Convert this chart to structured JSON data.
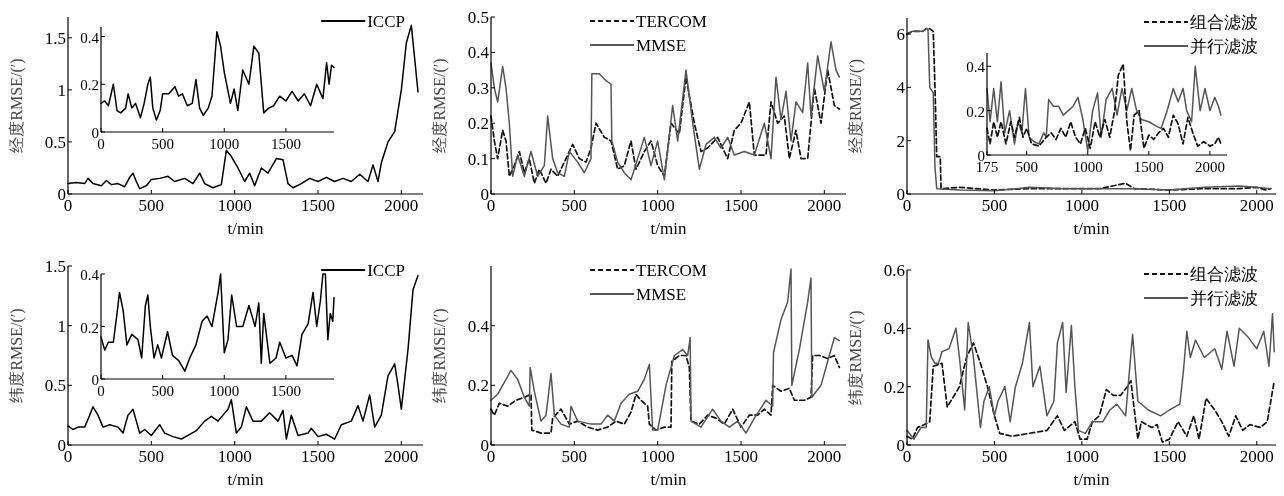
{
  "chart_data": [
    {
      "type": "line",
      "xlabel": "t/min",
      "ylabel": "经度RMSE/(′)",
      "xlim": [
        0,
        2130
      ],
      "ylim": [
        0,
        1.7
      ],
      "xticks": [
        0,
        500,
        1000,
        1500,
        2000
      ],
      "yticks": [
        0,
        0.5,
        1,
        1.5
      ],
      "legend": "top right",
      "series": [
        {
          "name": "ICCP",
          "color": "#000000",
          "line_style": "solid",
          "x": [
            0,
            50,
            100,
            120,
            150,
            200,
            230,
            260,
            300,
            340,
            370,
            390,
            410,
            430,
            470,
            500,
            550,
            600,
            640,
            700,
            750,
            790,
            820,
            870,
            920,
            950,
            980,
            1020,
            1060,
            1090,
            1120,
            1160,
            1200,
            1250,
            1290,
            1320,
            1350,
            1400,
            1450,
            1500,
            1550,
            1600,
            1650,
            1700,
            1750,
            1800,
            1830,
            1860,
            1880,
            1920,
            1960,
            2000,
            2030,
            2060,
            2080,
            2100
          ],
          "values": [
            0.1,
            0.11,
            0.1,
            0.15,
            0.1,
            0.08,
            0.13,
            0.09,
            0.1,
            0.07,
            0.16,
            0.2,
            0.12,
            0.05,
            0.08,
            0.14,
            0.15,
            0.17,
            0.12,
            0.15,
            0.1,
            0.2,
            0.1,
            0.06,
            0.09,
            0.42,
            0.36,
            0.25,
            0.12,
            0.2,
            0.08,
            0.25,
            0.2,
            0.34,
            0.33,
            0.1,
            0.06,
            0.1,
            0.15,
            0.12,
            0.16,
            0.12,
            0.15,
            0.12,
            0.19,
            0.12,
            0.28,
            0.12,
            0.3,
            0.5,
            0.6,
            1.0,
            1.45,
            1.62,
            1.3,
            0.98
          ]
        }
      ]
    },
    {
      "type": "line",
      "xlim": [
        0,
        1890
      ],
      "ylim": [
        0,
        0.44
      ],
      "xticks": [
        0,
        500,
        1000,
        1500
      ],
      "yticks": [
        0,
        0.2,
        0.4
      ],
      "series": [
        {
          "color": "#000000",
          "line_style": "solid",
          "x": [
            0,
            30,
            60,
            100,
            130,
            160,
            200,
            220,
            250,
            280,
            320,
            350,
            380,
            400,
            420,
            450,
            480,
            500,
            550,
            600,
            630,
            660,
            700,
            740,
            770,
            800,
            830,
            870,
            900,
            940,
            970,
            1000,
            1050,
            1080,
            1110,
            1150,
            1200,
            1240,
            1280,
            1320,
            1360,
            1400,
            1450,
            1500,
            1550,
            1600,
            1650,
            1700,
            1750,
            1800,
            1830,
            1850,
            1870,
            1890
          ],
          "values": [
            0.12,
            0.13,
            0.11,
            0.2,
            0.09,
            0.08,
            0.1,
            0.16,
            0.1,
            0.12,
            0.06,
            0.12,
            0.2,
            0.23,
            0.1,
            0.05,
            0.09,
            0.16,
            0.16,
            0.19,
            0.15,
            0.16,
            0.11,
            0.12,
            0.22,
            0.1,
            0.07,
            0.1,
            0.15,
            0.42,
            0.36,
            0.25,
            0.12,
            0.18,
            0.09,
            0.26,
            0.2,
            0.36,
            0.33,
            0.08,
            0.1,
            0.11,
            0.15,
            0.13,
            0.17,
            0.13,
            0.16,
            0.11,
            0.2,
            0.14,
            0.29,
            0.2,
            0.28,
            0.27
          ]
        }
      ]
    },
    {
      "type": "line",
      "xlabel": "t/min",
      "ylabel": "经度RMSE/(′)",
      "xlim": [
        0,
        2130
      ],
      "ylim": [
        0,
        0.5
      ],
      "xticks": [
        0,
        500,
        1000,
        1500,
        2000
      ],
      "yticks": [
        0,
        0.1,
        0.2,
        0.3,
        0.4,
        0.5
      ],
      "legend": "top",
      "series": [
        {
          "name": "TERCOM",
          "color": "#111111",
          "line_style": "dashed",
          "x": [
            0,
            20,
            40,
            70,
            90,
            110,
            140,
            170,
            200,
            230,
            260,
            290,
            330,
            360,
            400,
            440,
            490,
            530,
            570,
            600,
            630,
            680,
            720,
            760,
            800,
            840,
            870,
            920,
            960,
            1000,
            1040,
            1080,
            1130,
            1170,
            1220,
            1260,
            1300,
            1360,
            1420,
            1460,
            1500,
            1550,
            1580,
            1650,
            1680,
            1720,
            1760,
            1790,
            1830,
            1860,
            1900,
            1940,
            1980,
            2020,
            2060,
            2090
          ],
          "values": [
            0.22,
            0.15,
            0.1,
            0.18,
            0.15,
            0.05,
            0.08,
            0.12,
            0.06,
            0.1,
            0.03,
            0.07,
            0.03,
            0.07,
            0.05,
            0.09,
            0.14,
            0.1,
            0.09,
            0.13,
            0.2,
            0.16,
            0.15,
            0.07,
            0.08,
            0.15,
            0.07,
            0.12,
            0.15,
            0.08,
            0.05,
            0.2,
            0.17,
            0.33,
            0.2,
            0.12,
            0.13,
            0.16,
            0.1,
            0.18,
            0.2,
            0.26,
            0.11,
            0.11,
            0.26,
            0.2,
            0.22,
            0.1,
            0.18,
            0.1,
            0.1,
            0.3,
            0.2,
            0.35,
            0.25,
            0.24
          ]
        },
        {
          "name": "MMSE",
          "color": "#555555",
          "line_style": "solid",
          "x": [
            0,
            20,
            40,
            70,
            90,
            110,
            130,
            160,
            200,
            240,
            280,
            320,
            340,
            370,
            400,
            440,
            470,
            520,
            560,
            600,
            605,
            650,
            690,
            720,
            725,
            760,
            800,
            840,
            880,
            920,
            960,
            1000,
            1040,
            1090,
            1120,
            1170,
            1210,
            1250,
            1290,
            1340,
            1380,
            1420,
            1460,
            1520,
            1580,
            1640,
            1680,
            1710,
            1740,
            1770,
            1800,
            1830,
            1870,
            1900,
            1920,
            1960,
            2000,
            2040,
            2070,
            2090
          ],
          "values": [
            0.37,
            0.3,
            0.26,
            0.36,
            0.3,
            0.2,
            0.05,
            0.11,
            0.05,
            0.12,
            0.05,
            0.08,
            0.22,
            0.1,
            0.06,
            0.05,
            0.12,
            0.09,
            0.06,
            0.1,
            0.34,
            0.34,
            0.32,
            0.31,
            0.15,
            0.09,
            0.06,
            0.04,
            0.1,
            0.16,
            0.08,
            0.15,
            0.04,
            0.25,
            0.15,
            0.35,
            0.2,
            0.07,
            0.14,
            0.16,
            0.13,
            0.16,
            0.11,
            0.12,
            0.11,
            0.2,
            0.1,
            0.33,
            0.21,
            0.29,
            0.15,
            0.26,
            0.23,
            0.37,
            0.22,
            0.39,
            0.29,
            0.43,
            0.35,
            0.33
          ]
        }
      ]
    },
    {
      "type": "line",
      "xlabel": "t/min",
      "ylabel": "经度RMSE/(′)",
      "xlim": [
        0,
        2110
      ],
      "ylim": [
        0,
        6.6
      ],
      "xticks": [
        0,
        500,
        1000,
        1500,
        2000
      ],
      "yticks": [
        0,
        2,
        4,
        6
      ],
      "legend": "top right",
      "series": [
        {
          "name": "组合滤波",
          "color": "#111111",
          "line_style": "dashed",
          "x": [
            0,
            30,
            60,
            90,
            110,
            130,
            150,
            160,
            170,
            190,
            195,
            300,
            500,
            700,
            900,
            1100,
            1250,
            1300,
            1500,
            1700,
            1900,
            2000,
            2050,
            2080
          ],
          "values": [
            6.0,
            6.1,
            6.1,
            6.1,
            6.2,
            6.2,
            6.1,
            4.0,
            1.4,
            1.4,
            0.2,
            0.25,
            0.15,
            0.2,
            0.2,
            0.2,
            0.4,
            0.2,
            0.15,
            0.2,
            0.2,
            0.25,
            0.15,
            0.2
          ]
        },
        {
          "name": "并行滤波",
          "color": "#555555",
          "line_style": "solid",
          "x": [
            0,
            30,
            60,
            90,
            110,
            120,
            130,
            150,
            160,
            170,
            300,
            500,
            700,
            900,
            1100,
            1300,
            1500,
            1700,
            1900,
            2000,
            2080
          ],
          "values": [
            6.0,
            6.1,
            6.1,
            6.1,
            6.2,
            6.2,
            4.0,
            3.8,
            1.0,
            0.2,
            0.15,
            0.12,
            0.25,
            0.2,
            0.2,
            0.2,
            0.15,
            0.25,
            0.3,
            0.25,
            0.2
          ]
        }
      ]
    },
    {
      "type": "line",
      "xlim": [
        175,
        2140
      ],
      "ylim": [
        0,
        0.46
      ],
      "xticks": [
        175,
        500,
        1000,
        1500,
        2000
      ],
      "yticks": [
        0,
        0.2,
        0.4
      ],
      "series": [
        {
          "color": "#555555",
          "line_style": "solid",
          "x": [
            175,
            200,
            230,
            260,
            290,
            320,
            360,
            400,
            430,
            460,
            490,
            520,
            560,
            600,
            640,
            660,
            680,
            720,
            760,
            800,
            840,
            880,
            920,
            960,
            1000,
            1040,
            1080,
            1110,
            1150,
            1200,
            1240,
            1280,
            1320,
            1360,
            1400,
            1440,
            1500,
            1560,
            1600,
            1650,
            1700,
            1740,
            1780,
            1810,
            1850,
            1880,
            1920,
            1960,
            2000,
            2040,
            2070,
            2090
          ],
          "values": [
            0.3,
            0.15,
            0.3,
            0.15,
            0.33,
            0.1,
            0.2,
            0.05,
            0.15,
            0.1,
            0.3,
            0.08,
            0.06,
            0.05,
            0.1,
            0.08,
            0.25,
            0.22,
            0.22,
            0.18,
            0.2,
            0.22,
            0.26,
            0.16,
            0.02,
            0.2,
            0.28,
            0.08,
            0.25,
            0.3,
            0.18,
            0.3,
            0.2,
            0.3,
            0.2,
            0.16,
            0.15,
            0.13,
            0.12,
            0.2,
            0.3,
            0.24,
            0.3,
            0.2,
            0.15,
            0.4,
            0.2,
            0.3,
            0.2,
            0.26,
            0.22,
            0.18
          ]
        },
        {
          "color": "#111111",
          "line_style": "dashed",
          "x": [
            175,
            200,
            230,
            260,
            290,
            330,
            370,
            400,
            440,
            470,
            500,
            540,
            600,
            660,
            700,
            740,
            780,
            820,
            860,
            900,
            940,
            980,
            1020,
            1060,
            1100,
            1140,
            1180,
            1220,
            1250,
            1290,
            1320,
            1350,
            1380,
            1420,
            1460,
            1500,
            1540,
            1580,
            1620,
            1660,
            1700,
            1740,
            1780,
            1820,
            1860,
            1900,
            1950,
            2000,
            2040,
            2070,
            2090
          ],
          "values": [
            0.12,
            0.05,
            0.15,
            0.08,
            0.15,
            0.05,
            0.15,
            0.08,
            0.17,
            0.08,
            0.12,
            0.05,
            0.04,
            0.08,
            0.1,
            0.07,
            0.12,
            0.08,
            0.15,
            0.08,
            0.05,
            0.12,
            0.03,
            0.15,
            0.08,
            0.16,
            0.08,
            0.2,
            0.36,
            0.41,
            0.15,
            0.02,
            0.18,
            0.2,
            0.03,
            0.09,
            0.07,
            0.1,
            0.12,
            0.08,
            0.18,
            0.14,
            0.05,
            0.17,
            0.1,
            0.04,
            0.06,
            0.04,
            0.05,
            0.08,
            0.05
          ]
        }
      ]
    },
    {
      "type": "line",
      "xlabel": "t/min",
      "ylabel": "纬度RMSE/(′)",
      "xlim": [
        0,
        2130
      ],
      "ylim": [
        0,
        1.5
      ],
      "xticks": [
        0,
        500,
        1000,
        1500,
        2000
      ],
      "yticks": [
        0,
        0.5,
        1,
        1.5
      ],
      "legend": "top right",
      "series": [
        {
          "name": "ICCP",
          "color": "#000000",
          "line_style": "solid",
          "x": [
            0,
            30,
            60,
            100,
            130,
            150,
            180,
            210,
            250,
            300,
            330,
            360,
            390,
            410,
            430,
            460,
            500,
            550,
            580,
            630,
            680,
            720,
            770,
            820,
            860,
            900,
            960,
            980,
            1010,
            1040,
            1070,
            1110,
            1160,
            1210,
            1260,
            1290,
            1310,
            1340,
            1380,
            1440,
            1460,
            1500,
            1550,
            1600,
            1640,
            1700,
            1740,
            1770,
            1810,
            1840,
            1880,
            1920,
            1960,
            1980,
            2000,
            2040,
            2070,
            2100
          ],
          "values": [
            0.16,
            0.13,
            0.15,
            0.15,
            0.25,
            0.32,
            0.25,
            0.15,
            0.17,
            0.15,
            0.1,
            0.25,
            0.3,
            0.2,
            0.1,
            0.13,
            0.08,
            0.17,
            0.1,
            0.07,
            0.05,
            0.08,
            0.12,
            0.2,
            0.24,
            0.2,
            0.3,
            0.38,
            0.1,
            0.15,
            0.32,
            0.2,
            0.2,
            0.27,
            0.2,
            0.29,
            0.05,
            0.25,
            0.08,
            0.1,
            0.14,
            0.07,
            0.09,
            0.05,
            0.17,
            0.2,
            0.33,
            0.2,
            0.42,
            0.15,
            0.25,
            0.58,
            0.68,
            0.5,
            0.3,
            0.8,
            1.3,
            1.42
          ]
        }
      ]
    },
    {
      "type": "line",
      "xlim": [
        0,
        1890
      ],
      "ylim": [
        0,
        0.4
      ],
      "xticks": [
        0,
        500,
        1000,
        1500
      ],
      "yticks": [
        0,
        0.2,
        0.4
      ],
      "series": [
        {
          "color": "#000000",
          "line_style": "solid",
          "x": [
            0,
            30,
            60,
            100,
            130,
            150,
            180,
            210,
            250,
            300,
            330,
            360,
            380,
            400,
            430,
            460,
            490,
            540,
            580,
            630,
            680,
            720,
            770,
            820,
            860,
            900,
            950,
            970,
            1000,
            1030,
            1060,
            1100,
            1150,
            1200,
            1250,
            1280,
            1300,
            1320,
            1370,
            1420,
            1450,
            1500,
            1550,
            1590,
            1630,
            1680,
            1720,
            1750,
            1780,
            1800,
            1820,
            1840,
            1860,
            1880,
            1890
          ],
          "values": [
            0.16,
            0.11,
            0.14,
            0.14,
            0.25,
            0.33,
            0.26,
            0.13,
            0.17,
            0.15,
            0.08,
            0.28,
            0.32,
            0.2,
            0.08,
            0.13,
            0.08,
            0.18,
            0.09,
            0.07,
            0.03,
            0.08,
            0.13,
            0.22,
            0.24,
            0.2,
            0.33,
            0.4,
            0.1,
            0.15,
            0.32,
            0.2,
            0.2,
            0.28,
            0.2,
            0.29,
            0.06,
            0.25,
            0.06,
            0.08,
            0.14,
            0.08,
            0.09,
            0.05,
            0.17,
            0.21,
            0.33,
            0.2,
            0.3,
            0.4,
            0.4,
            0.15,
            0.25,
            0.22,
            0.31
          ]
        }
      ]
    },
    {
      "type": "line",
      "xlabel": "t/min",
      "ylabel": "纬度RMSE/(′)",
      "xlim": [
        0,
        2130
      ],
      "ylim": [
        0,
        0.6
      ],
      "xticks": [
        0,
        500,
        1000,
        1500,
        2000
      ],
      "yticks": [
        0,
        0.2,
        0.4
      ],
      "legend": "top",
      "series": [
        {
          "name": "TERCOM",
          "color": "#111111",
          "line_style": "dashed",
          "x": [
            0,
            20,
            50,
            100,
            150,
            200,
            240,
            245,
            300,
            360,
            370,
            420,
            470,
            520,
            580,
            640,
            700,
            750,
            800,
            840,
            870,
            900,
            940,
            950,
            990,
            1040,
            1080,
            1085,
            1130,
            1170,
            1190,
            1200,
            1250,
            1300,
            1350,
            1400,
            1450,
            1500,
            1550,
            1600,
            1640,
            1680,
            1690,
            1740,
            1790,
            1820,
            1880,
            1920,
            1930,
            1970,
            2020,
            2060,
            2090
          ],
          "values": [
            0.12,
            0.1,
            0.14,
            0.13,
            0.15,
            0.16,
            0.17,
            0.05,
            0.04,
            0.04,
            0.09,
            0.12,
            0.07,
            0.08,
            0.06,
            0.05,
            0.06,
            0.08,
            0.07,
            0.11,
            0.17,
            0.15,
            0.13,
            0.07,
            0.05,
            0.06,
            0.06,
            0.28,
            0.3,
            0.3,
            0.26,
            0.08,
            0.07,
            0.1,
            0.09,
            0.07,
            0.12,
            0.06,
            0.1,
            0.1,
            0.12,
            0.1,
            0.2,
            0.18,
            0.19,
            0.15,
            0.15,
            0.16,
            0.3,
            0.3,
            0.29,
            0.3,
            0.26
          ]
        },
        {
          "name": "MMSE",
          "color": "#555555",
          "line_style": "solid",
          "x": [
            0,
            40,
            80,
            120,
            160,
            200,
            230,
            235,
            260,
            300,
            330,
            360,
            380,
            420,
            470,
            480,
            520,
            600,
            660,
            700,
            740,
            780,
            830,
            880,
            920,
            950,
            970,
            1000,
            1050,
            1100,
            1150,
            1180,
            1195,
            1200,
            1260,
            1330,
            1380,
            1430,
            1480,
            1530,
            1580,
            1650,
            1690,
            1695,
            1740,
            1780,
            1800,
            1805,
            1850,
            1900,
            1920,
            1925,
            1980,
            2030,
            2060,
            2090
          ],
          "values": [
            0.15,
            0.17,
            0.21,
            0.25,
            0.22,
            0.16,
            0.13,
            0.26,
            0.18,
            0.08,
            0.1,
            0.24,
            0.1,
            0.07,
            0.06,
            0.13,
            0.08,
            0.07,
            0.07,
            0.1,
            0.08,
            0.14,
            0.17,
            0.18,
            0.22,
            0.27,
            0.05,
            0.05,
            0.2,
            0.3,
            0.32,
            0.3,
            0.36,
            0.08,
            0.06,
            0.12,
            0.08,
            0.06,
            0.08,
            0.04,
            0.09,
            0.15,
            0.13,
            0.31,
            0.42,
            0.48,
            0.59,
            0.2,
            0.32,
            0.48,
            0.56,
            0.16,
            0.2,
            0.3,
            0.36,
            0.35
          ]
        }
      ]
    },
    {
      "type": "line",
      "xlabel": "t/min",
      "ylabel": "纬度RMSE/(′)",
      "xlim": [
        0,
        2110
      ],
      "ylim": [
        0,
        0.6
      ],
      "xticks": [
        0,
        500,
        1000,
        1500,
        2000
      ],
      "yticks": [
        0,
        0.2,
        0.4,
        0.6
      ],
      "legend": "top right",
      "series": [
        {
          "name": "组合滤波",
          "color": "#111111",
          "line_style": "dashed",
          "x": [
            0,
            30,
            60,
            100,
            130,
            150,
            200,
            230,
            260,
            300,
            340,
            380,
            420,
            460,
            500,
            530,
            600,
            700,
            800,
            860,
            900,
            960,
            990,
            1030,
            1060,
            1100,
            1140,
            1180,
            1220,
            1260,
            1280,
            1320,
            1340,
            1400,
            1430,
            1460,
            1500,
            1550,
            1600,
            1640,
            1670,
            1710,
            1760,
            1800,
            1840,
            1880,
            1920,
            1960,
            2020,
            2060,
            2080,
            2100
          ],
          "values": [
            0.03,
            0.02,
            0.06,
            0.07,
            0.08,
            0.27,
            0.28,
            0.13,
            0.16,
            0.2,
            0.3,
            0.35,
            0.28,
            0.2,
            0.1,
            0.04,
            0.03,
            0.04,
            0.05,
            0.1,
            0.05,
            0.08,
            0.02,
            0.02,
            0.08,
            0.1,
            0.19,
            0.17,
            0.17,
            0.2,
            0.22,
            0.02,
            0.08,
            0.06,
            0.07,
            0.01,
            0.02,
            0.08,
            0.03,
            0.1,
            0.02,
            0.16,
            0.12,
            0.08,
            0.03,
            0.1,
            0.05,
            0.07,
            0.06,
            0.08,
            0.15,
            0.22
          ]
        },
        {
          "name": "并行滤波",
          "color": "#555555",
          "line_style": "solid",
          "x": [
            0,
            40,
            80,
            110,
            120,
            140,
            160,
            180,
            200,
            240,
            280,
            300,
            330,
            350,
            380,
            420,
            440,
            470,
            500,
            520,
            560,
            590,
            620,
            660,
            700,
            720,
            760,
            800,
            840,
            860,
            890,
            910,
            940,
            960,
            980,
            1020,
            1060,
            1120,
            1160,
            1200,
            1250,
            1290,
            1320,
            1380,
            1450,
            1500,
            1560,
            1580,
            1600,
            1620,
            1650,
            1700,
            1760,
            1800,
            1830,
            1870,
            1900,
            1950,
            2000,
            2040,
            2070,
            2090,
            2100
          ],
          "values": [
            0.05,
            0.02,
            0.06,
            0.06,
            0.36,
            0.3,
            0.28,
            0.28,
            0.32,
            0.33,
            0.4,
            0.3,
            0.12,
            0.42,
            0.3,
            0.06,
            0.15,
            0.2,
            0.1,
            0.15,
            0.2,
            0.08,
            0.2,
            0.28,
            0.42,
            0.2,
            0.27,
            0.1,
            0.15,
            0.35,
            0.42,
            0.18,
            0.41,
            0.2,
            0.05,
            0.04,
            0.08,
            0.08,
            0.12,
            0.14,
            0.1,
            0.38,
            0.15,
            0.12,
            0.1,
            0.12,
            0.14,
            0.25,
            0.39,
            0.3,
            0.36,
            0.3,
            0.33,
            0.26,
            0.39,
            0.27,
            0.4,
            0.37,
            0.33,
            0.39,
            0.27,
            0.45,
            0.32
          ]
        }
      ]
    }
  ]
}
